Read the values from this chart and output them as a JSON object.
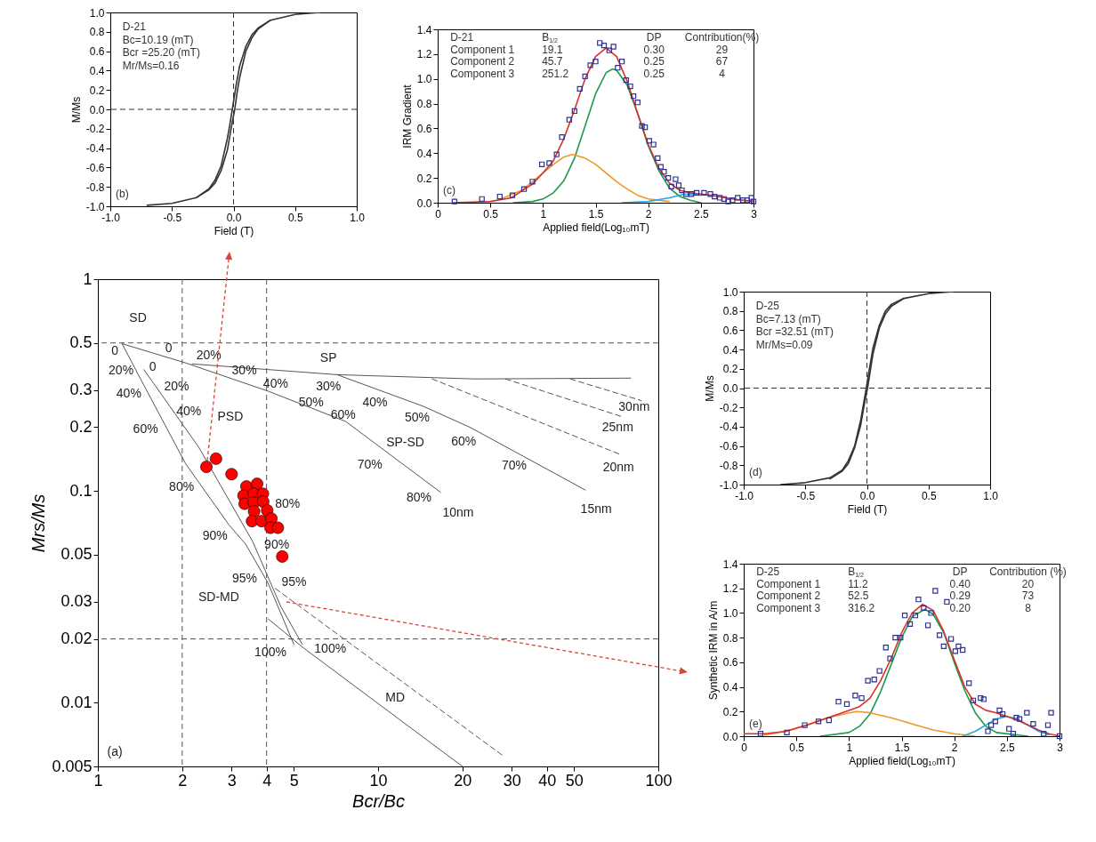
{
  "chart_data": [
    {
      "type": "line",
      "xlabel": "Field (T)",
      "ylabel": "M/Ms",
      "xlim": [
        -1,
        1
      ],
      "ylim": [
        -1,
        1
      ],
      "xticks": [
        {
          "value": -1,
          "label": "-1.0"
        },
        -0.5,
        {
          "value": 0,
          "label": "0.0"
        },
        0.5,
        {
          "value": 1,
          "label": "1.0"
        }
      ],
      "yticks": [
        {
          "value": -1,
          "label": "-1.0"
        },
        -0.8,
        -0.6,
        -0.4,
        -0.2,
        {
          "value": 0,
          "label": "0.0"
        },
        0.2,
        0.4,
        0.6,
        0.8,
        {
          "value": 1,
          "label": "1.0"
        }
      ],
      "series": [
        {
          "color": "#333333",
          "x": [
            -0.7,
            -0.5,
            -0.3,
            -0.2,
            -0.15,
            -0.1,
            -0.05,
            -0.03,
            -0.01,
            0.02,
            0.05,
            0.1,
            0.15,
            0.2,
            0.3,
            0.5,
            0.7
          ],
          "values": [
            -0.99,
            -0.97,
            -0.91,
            -0.82,
            -0.73,
            -0.58,
            -0.3,
            -0.16,
            0,
            0.24,
            0.45,
            0.65,
            0.77,
            0.84,
            0.92,
            0.98,
            1.0
          ]
        },
        {
          "color": "#333333",
          "x": [
            -0.3,
            -0.2,
            -0.15,
            -0.1,
            -0.05,
            -0.02,
            0.01,
            0.03,
            0.05,
            0.1,
            0.15,
            0.2,
            0.3
          ],
          "values": [
            -0.91,
            -0.83,
            -0.76,
            -0.63,
            -0.42,
            -0.2,
            0,
            0.18,
            0.33,
            0.6,
            0.74,
            0.83,
            0.92
          ]
        }
      ],
      "ref_lines": [
        {
          "axis": "x",
          "value": 0,
          "line_style": "dashed",
          "color": "#333333"
        },
        {
          "axis": "y",
          "value": 0,
          "line_style": "dashed",
          "color": "#333333"
        }
      ],
      "annotations": [
        "D-21",
        "Bc=10.19 (mT)",
        "Bcr =25.20 (mT)",
        "Mr/Ms=0.16",
        "(b)"
      ]
    },
    {
      "type": "scatter",
      "xlabel": "Applied field(Log₁₀mT)",
      "ylabel": "IRM Gradient",
      "xlim": [
        0,
        3
      ],
      "ylim": [
        0,
        1.4
      ],
      "xticks": [
        0,
        0.5,
        1,
        1.5,
        2,
        2.5,
        3
      ],
      "yticks": [
        {
          "value": 0,
          "label": "0.0"
        },
        0.2,
        0.4,
        0.6,
        0.8,
        {
          "value": 1,
          "label": "1.0"
        },
        1.2,
        1.4
      ],
      "series": [
        {
          "type": "line",
          "color": "#1a9a4a",
          "x": [
            0.72,
            0.9,
            1.0,
            1.1,
            1.2,
            1.3,
            1.4,
            1.5,
            1.6,
            1.66,
            1.7,
            1.8,
            1.9,
            2.0,
            2.1,
            2.2,
            2.3,
            2.4,
            2.5
          ],
          "values": [
            0,
            0.01,
            0.03,
            0.08,
            0.18,
            0.36,
            0.62,
            0.88,
            1.05,
            1.08,
            1.07,
            0.95,
            0.72,
            0.46,
            0.26,
            0.12,
            0.05,
            0.02,
            0
          ]
        },
        {
          "type": "line",
          "color": "#f0962a",
          "x": [
            0.6,
            0.8,
            1.0,
            1.1,
            1.2,
            1.28,
            1.4,
            1.5,
            1.6,
            1.7,
            1.8,
            1.9,
            2.0,
            2.2
          ],
          "values": [
            0.03,
            0.1,
            0.24,
            0.31,
            0.37,
            0.39,
            0.36,
            0.31,
            0.24,
            0.17,
            0.11,
            0.06,
            0.03,
            0.01
          ]
        },
        {
          "type": "line",
          "color": "#27a9e1",
          "x": [
            1.75,
            2.0,
            2.2,
            2.35,
            2.5
          ],
          "values": [
            0,
            0.01,
            0.04,
            0.07,
            0.06
          ]
        },
        {
          "type": "line",
          "color": "#d9302c",
          "x": [
            0.15,
            0.5,
            0.7,
            0.9,
            1.0,
            1.1,
            1.2,
            1.3,
            1.4,
            1.5,
            1.6,
            1.7,
            1.8,
            1.9,
            2.0,
            2.1,
            2.2,
            2.3,
            2.4,
            2.5,
            2.6,
            2.8,
            3.0
          ],
          "values": [
            0,
            0.01,
            0.04,
            0.15,
            0.24,
            0.34,
            0.52,
            0.75,
            1.0,
            1.18,
            1.25,
            1.18,
            0.98,
            0.72,
            0.47,
            0.28,
            0.16,
            0.1,
            0.08,
            0.07,
            0.06,
            0.03,
            0.01
          ]
        },
        {
          "type": "scatter",
          "marker": "square",
          "color": "#2e3192",
          "x": [
            0.16,
            0.42,
            0.59,
            0.71,
            0.82,
            0.9,
            0.99,
            1.06,
            1.13,
            1.18,
            1.25,
            1.3,
            1.35,
            1.4,
            1.45,
            1.5,
            1.54,
            1.58,
            1.63,
            1.67,
            1.71,
            1.75,
            1.79,
            1.83,
            1.86,
            1.9,
            1.94,
            1.97,
            2.01,
            2.05,
            2.09,
            2.12,
            2.15,
            2.19,
            2.22,
            2.26,
            2.29,
            2.32,
            2.36,
            2.41,
            2.46,
            2.53,
            2.59,
            2.63,
            2.68,
            2.72,
            2.76,
            2.8,
            2.85,
            2.9,
            2.94,
            2.98,
            3.0
          ],
          "values": [
            0.01,
            0.03,
            0.05,
            0.06,
            0.11,
            0.17,
            0.31,
            0.32,
            0.39,
            0.53,
            0.67,
            0.74,
            0.92,
            1.02,
            1.11,
            1.14,
            1.29,
            1.27,
            1.23,
            1.26,
            1.09,
            1.14,
            0.99,
            0.94,
            0.86,
            0.81,
            0.62,
            0.61,
            0.5,
            0.47,
            0.36,
            0.29,
            0.25,
            0.2,
            0.13,
            0.19,
            0.14,
            0.1,
            0.07,
            0.07,
            0.08,
            0.08,
            0.07,
            0.05,
            0.04,
            0.03,
            0.01,
            0.02,
            0.04,
            0.02,
            0.02,
            0.04,
            0.01
          ]
        }
      ],
      "annotations": [
        "D-21",
        "B$_{1/2}$",
        "DP",
        "Contribution(%)",
        "Component 1",
        "19.1",
        "0.30",
        "29",
        "Component 2",
        "45.7",
        "0.25",
        "67",
        "Component 3",
        "251.2",
        "0.25",
        "4",
        "(c)"
      ]
    },
    {
      "type": "scatter",
      "log": "xy",
      "xlabel": "Bcr/Bc",
      "ylabel": "Mrs/Ms",
      "xlim": [
        1,
        100
      ],
      "ylim": [
        0.005,
        1
      ],
      "xticks": [
        1,
        2,
        3,
        4,
        5,
        10,
        20,
        30,
        40,
        50,
        100
      ],
      "yticks": [
        0.005,
        0.01,
        0.02,
        0.03,
        0.05,
        0.1,
        0.2,
        0.3,
        0.5,
        1
      ],
      "series": [
        {
          "type": "line",
          "color": "#555555",
          "x": [
            1.22,
            1.42,
            2.06,
            2.94,
            3.37,
            4.05,
            5.01
          ],
          "values": [
            0.496,
            0.338,
            0.134,
            0.069,
            0.056,
            0.0367,
            0.0188
          ]
        },
        {
          "type": "line",
          "color": "#555555",
          "x": [
            1.46,
            2.29,
            3.57,
            4.5,
            5.37
          ],
          "values": [
            0.374,
            0.161,
            0.0576,
            0.0284,
            0.0188
          ]
        },
        {
          "type": "line",
          "color": "#555555",
          "x": [
            4.05,
            5.37,
            20
          ],
          "values": [
            0.0249,
            0.0183,
            0.005
          ]
        },
        {
          "type": "line",
          "color": "#555555",
          "line_style": "dashed",
          "x": [
            4.3,
            27.7
          ],
          "values": [
            0.0346,
            0.00566
          ]
        },
        {
          "type": "line",
          "color": "#555555",
          "x": [
            1.22,
            2.06,
            4.05,
            7.66,
            16.7
          ],
          "values": [
            0.496,
            0.402,
            0.296,
            0.213,
            0.0986
          ]
        },
        {
          "type": "line",
          "color": "#555555",
          "x": [
            2.17,
            7.14,
            22.2,
            79.7
          ],
          "values": [
            0.398,
            0.354,
            0.338,
            0.341
          ]
        },
        {
          "type": "line",
          "color": "#555555",
          "x": [
            7.14,
            14.5,
            21.4,
            54.9
          ],
          "values": [
            0.354,
            0.251,
            0.199,
            0.101
          ]
        },
        {
          "type": "line",
          "color": "#555555",
          "line_style": "dashed",
          "x": [
            15.6,
            72.9
          ],
          "values": [
            0.338,
            0.149
          ]
        },
        {
          "type": "line",
          "color": "#555555",
          "line_style": "dashed",
          "x": [
            28.5,
            74.4
          ],
          "values": [
            0.338,
            0.224
          ]
        },
        {
          "type": "line",
          "color": "#555555",
          "line_style": "dashed",
          "x": [
            48.5,
            87.1
          ],
          "values": [
            0.338,
            0.267
          ]
        },
        {
          "type": "scatter",
          "marker": "circle",
          "color": "#ff0000",
          "x": [
            2.44,
            2.64,
            3.0,
            3.39,
            3.7,
            3.31,
            3.6,
            3.88,
            3.34,
            3.6,
            3.89,
            3.61,
            4.02,
            3.55,
            3.84,
            4.16,
            4.13,
            4.39,
            4.55
          ],
          "values": [
            0.13,
            0.142,
            0.12,
            0.105,
            0.108,
            0.095,
            0.097,
            0.097,
            0.087,
            0.088,
            0.089,
            0.08,
            0.081,
            0.072,
            0.072,
            0.074,
            0.067,
            0.067,
            0.049
          ]
        }
      ],
      "ref_lines": [
        {
          "axis": "x",
          "value": 2,
          "line_style": "dashed",
          "color": "#555555"
        },
        {
          "axis": "x",
          "value": 4,
          "line_style": "dashed",
          "color": "#555555"
        },
        {
          "axis": "y",
          "value": 0.5,
          "line_style": "dashed",
          "color": "#555555"
        },
        {
          "axis": "y",
          "value": 0.02,
          "line_style": "dashed",
          "color": "#555555"
        }
      ],
      "annotations": [
        "SD",
        "0",
        "0",
        "20%",
        "SP",
        "20%",
        "0",
        "30%",
        "40%",
        "20%",
        "40%",
        "30%",
        "50%",
        "40%",
        "40%",
        "PSD",
        "60%",
        "50%",
        "60%",
        "SP-SD",
        "60%",
        "70%",
        "70%",
        "30nm",
        "25nm",
        "20nm",
        "80%",
        "80%",
        "10nm",
        "15nm",
        "80%",
        "90%",
        "90%",
        "95%",
        "95%",
        "SD-MD",
        "100%",
        "100%",
        "MD",
        "(a)"
      ]
    },
    {
      "type": "line",
      "xlabel": "Field (T)",
      "ylabel": "M/Ms",
      "xlim": [
        -1,
        1
      ],
      "ylim": [
        -1,
        1
      ],
      "xticks": [
        {
          "value": -1,
          "label": "-1.0"
        },
        -0.5,
        {
          "value": 0,
          "label": "0.0"
        },
        0.5,
        {
          "value": 1,
          "label": "1.0"
        }
      ],
      "yticks": [
        {
          "value": -1,
          "label": "-1.0"
        },
        -0.8,
        -0.6,
        -0.4,
        -0.2,
        {
          "value": 0,
          "label": "0.0"
        },
        0.2,
        0.4,
        0.6,
        0.8,
        {
          "value": 1,
          "label": "1.0"
        }
      ],
      "series": [
        {
          "color": "#333333",
          "x": [
            -0.7,
            -0.5,
            -0.3,
            -0.2,
            -0.15,
            -0.1,
            -0.05,
            -0.03,
            -0.005,
            0.02,
            0.05,
            0.1,
            0.15,
            0.2,
            0.3,
            0.5,
            0.7
          ],
          "values": [
            -1.0,
            -0.98,
            -0.93,
            -0.85,
            -0.75,
            -0.6,
            -0.33,
            -0.18,
            0,
            0.2,
            0.42,
            0.65,
            0.8,
            0.87,
            0.93,
            0.98,
            1.0
          ]
        },
        {
          "color": "#333333",
          "x": [
            -0.3,
            -0.2,
            -0.15,
            -0.1,
            -0.05,
            -0.02,
            0.005,
            0.03,
            0.05,
            0.1,
            0.15,
            0.2,
            0.3
          ],
          "values": [
            -0.94,
            -0.86,
            -0.78,
            -0.62,
            -0.38,
            -0.16,
            0,
            0.2,
            0.36,
            0.62,
            0.77,
            0.85,
            0.93
          ]
        }
      ],
      "ref_lines": [
        {
          "axis": "x",
          "value": 0,
          "line_style": "dashed",
          "color": "#333333"
        },
        {
          "axis": "y",
          "value": 0,
          "line_style": "dashed",
          "color": "#333333"
        }
      ],
      "annotations": [
        "D-25",
        "Bc=7.13 (mT)",
        "Bcr =32.51 (mT)",
        "Mr/Ms=0.09",
        "(d)"
      ]
    },
    {
      "type": "scatter",
      "xlabel": "Applied field(Log₁₀mT)",
      "ylabel": "Synthetic IRM in A/m",
      "xlim": [
        0,
        3
      ],
      "ylim": [
        0,
        1.4
      ],
      "xticks": [
        0,
        0.5,
        1,
        1.5,
        2,
        2.5,
        3
      ],
      "yticks": [
        {
          "value": 0,
          "label": "0.0"
        },
        0.2,
        0.4,
        0.6,
        0.8,
        {
          "value": 1,
          "label": "1.0"
        },
        1.2,
        1.4
      ],
      "series": [
        {
          "type": "line",
          "color": "#1a9a4a",
          "x": [
            0.73,
            1.0,
            1.1,
            1.2,
            1.3,
            1.4,
            1.5,
            1.6,
            1.72,
            1.8,
            1.9,
            2.0,
            2.1,
            2.2,
            2.3,
            2.4,
            2.7
          ],
          "values": [
            0,
            0.03,
            0.08,
            0.18,
            0.36,
            0.58,
            0.8,
            0.97,
            1.03,
            0.99,
            0.84,
            0.6,
            0.37,
            0.19,
            0.08,
            0.03,
            0
          ]
        },
        {
          "type": "line",
          "color": "#f0962a",
          "x": [
            0.2,
            0.4,
            0.6,
            0.8,
            1.0,
            1.08,
            1.2,
            1.4,
            1.6,
            1.8,
            2.0,
            2.2
          ],
          "values": [
            0.01,
            0.04,
            0.09,
            0.15,
            0.19,
            0.2,
            0.19,
            0.15,
            0.1,
            0.05,
            0.02,
            0
          ]
        },
        {
          "type": "line",
          "color": "#27a9e1",
          "x": [
            2.08,
            2.2,
            2.3,
            2.4,
            2.5,
            2.6,
            2.7,
            2.8,
            2.9
          ],
          "values": [
            0,
            0.04,
            0.09,
            0.14,
            0.16,
            0.14,
            0.09,
            0.04,
            0.01
          ]
        },
        {
          "type": "line",
          "color": "#d9302c",
          "x": [
            0,
            0.2,
            0.4,
            0.6,
            0.8,
            1.0,
            1.1,
            1.2,
            1.3,
            1.4,
            1.5,
            1.6,
            1.7,
            1.8,
            1.9,
            2.0,
            2.1,
            2.2,
            2.3,
            2.4,
            2.5,
            2.6,
            2.7,
            2.8,
            2.9,
            3.0
          ],
          "values": [
            0.02,
            0.02,
            0.04,
            0.09,
            0.15,
            0.21,
            0.24,
            0.31,
            0.45,
            0.63,
            0.84,
            1.0,
            1.07,
            1.02,
            0.85,
            0.62,
            0.4,
            0.26,
            0.21,
            0.19,
            0.16,
            0.13,
            0.09,
            0.05,
            0.02,
            0
          ]
        },
        {
          "type": "scatter",
          "marker": "square",
          "color": "#2e3192",
          "x": [
            0.16,
            0.41,
            0.58,
            0.71,
            0.81,
            0.9,
            0.98,
            1.06,
            1.12,
            1.18,
            1.24,
            1.29,
            1.35,
            1.39,
            1.44,
            1.49,
            1.53,
            1.58,
            1.63,
            1.66,
            1.71,
            1.75,
            1.78,
            1.82,
            1.86,
            1.9,
            1.93,
            1.97,
            2.01,
            2.04,
            2.08,
            2.14,
            2.18,
            2.25,
            2.28,
            2.32,
            2.35,
            2.39,
            2.43,
            2.46,
            2.52,
            2.56,
            2.59,
            2.62,
            2.69,
            2.75,
            2.85,
            2.89,
            2.92,
            3.0
          ],
          "values": [
            0.02,
            0.03,
            0.09,
            0.12,
            0.13,
            0.28,
            0.26,
            0.33,
            0.31,
            0.45,
            0.46,
            0.53,
            0.72,
            0.63,
            0.8,
            0.8,
            0.98,
            0.91,
            0.98,
            1.11,
            1.04,
            0.9,
            1.0,
            1.18,
            0.82,
            0.73,
            1.09,
            0.79,
            0.69,
            0.73,
            0.7,
            0.43,
            0.29,
            0.31,
            0.3,
            0.04,
            0.09,
            0.12,
            0.21,
            0.18,
            0.06,
            0.02,
            0.15,
            0.14,
            0.19,
            0.1,
            0.02,
            0.09,
            0.19,
            0
          ]
        }
      ],
      "annotations": [
        "D-25",
        "B$_{1/2}$",
        "DP",
        "Contribution (%)",
        "Component 1",
        "11.2",
        "0.40",
        "20",
        "Component 2",
        "52.5",
        "0.29",
        "73",
        "Component 3",
        "316.2",
        "0.20",
        "8",
        "(e)"
      ]
    }
  ]
}
